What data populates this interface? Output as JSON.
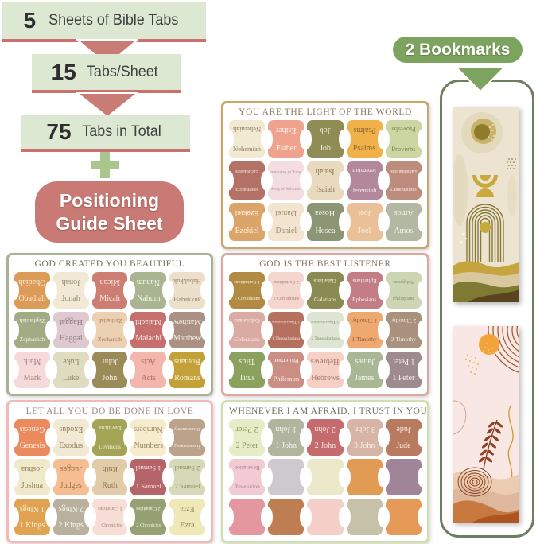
{
  "funnel": {
    "steps": [
      {
        "number": "5",
        "label": "Sheets of Bible Tabs"
      },
      {
        "number": "15",
        "label": "Tabs/Sheet"
      },
      {
        "number": "75",
        "label": "Tabs in Total"
      }
    ],
    "guide_line1": "Positioning",
    "guide_line2": "Guide Sheet"
  },
  "bookmarks_badge": "2 Bookmarks",
  "colors": {
    "badge_bg": "#dce8d2",
    "badge_underline": "#c8716e",
    "arrow_pink": "#c97b75",
    "plus_green": "#a9c78d",
    "guide_bg": "#c97a74",
    "bookmark_badge_bg": "#7da45f",
    "panel_border": "#6f7e5e"
  },
  "sheets": [
    {
      "title": "YOU ARE THE LIGHT OF THE WORLD",
      "border": "#c9a76c",
      "title_color": "#8a7a5e",
      "tabs": [
        {
          "label": "Nehemiah",
          "bg": "#f1e9d2",
          "fg": "#8d7c5e"
        },
        {
          "label": "Esther",
          "bg": "#efa28e",
          "fg": "#fdf3ec"
        },
        {
          "label": "Job",
          "bg": "#8f8c55",
          "fg": "#f3efdd"
        },
        {
          "label": "Psalms",
          "bg": "#f0b04a",
          "fg": "#8a6430"
        },
        {
          "label": "Proverbs",
          "bg": "#cbd6a2",
          "fg": "#7e8255"
        },
        {
          "label": "Ecclesiastes",
          "bg": "#b47165",
          "fg": "#f7e9e3"
        },
        {
          "label": "Song of Solomon",
          "bg": "#f3dde0",
          "fg": "#b08f96"
        },
        {
          "label": "Isaiah",
          "bg": "#e9dabd",
          "fg": "#8a7a58"
        },
        {
          "label": "Jeremiah",
          "bg": "#b2889a",
          "fg": "#f4eaf0"
        },
        {
          "label": "Lamentations",
          "bg": "#bd8c7c",
          "fg": "#f7ebe4"
        },
        {
          "label": "Ezekiel",
          "bg": "#dba56a",
          "fg": "#faf0e2"
        },
        {
          "label": "Daniel",
          "bg": "#f3e4d0",
          "fg": "#a28e6e"
        },
        {
          "label": "Hosea",
          "bg": "#8c9674",
          "fg": "#f3f3e5"
        },
        {
          "label": "Joel",
          "bg": "#e9c098",
          "fg": "#faf0e0"
        },
        {
          "label": "Amos",
          "bg": "#b3b8a2",
          "fg": "#f3f3eb"
        }
      ]
    },
    {
      "title": "GOD CREATED YOU BEAUTIFUL",
      "border": "#a9b293",
      "title_color": "#6e7258",
      "tabs": [
        {
          "label": "Obadiah",
          "bg": "#dc9c57",
          "fg": "#faefdc"
        },
        {
          "label": "Jonah",
          "bg": "#f1e9d5",
          "fg": "#968667"
        },
        {
          "label": "Micah",
          "bg": "#cb7e71",
          "fg": "#f9e9e3"
        },
        {
          "label": "Nahum",
          "bg": "#a9b491",
          "fg": "#f5f5e9"
        },
        {
          "label": "Habakkuk",
          "bg": "#ece0ca",
          "fg": "#94846a"
        },
        {
          "label": "Zephaniah",
          "bg": "#a3ab84",
          "fg": "#f3f5e7"
        },
        {
          "label": "Haggai",
          "bg": "#ddc9cf",
          "fg": "#8d7a85"
        },
        {
          "label": "Zechariah",
          "bg": "#ecd0b2",
          "fg": "#97795a"
        },
        {
          "label": "Malachi",
          "bg": "#c5706d",
          "fg": "#fbe9e5"
        },
        {
          "label": "Matthew",
          "bg": "#ab9183",
          "fg": "#f7ede3"
        },
        {
          "label": "Mark",
          "bg": "#f6dada",
          "fg": "#a98080"
        },
        {
          "label": "Luke",
          "bg": "#e0dcc1",
          "fg": "#8f8a62"
        },
        {
          "label": "John",
          "bg": "#9b8b59",
          "fg": "#f4efde"
        },
        {
          "label": "Acts",
          "bg": "#f2b6ac",
          "fg": "#aa6a60"
        },
        {
          "label": "Romans",
          "bg": "#c2a238",
          "fg": "#f9f1d9"
        }
      ]
    },
    {
      "title": "GOD IS THE BEST LISTENER",
      "border": "#dfa7a2",
      "title_color": "#87756a",
      "tabs": [
        {
          "label": "1 Corinthians",
          "bg": "#b18a43",
          "fg": "#f7efd9"
        },
        {
          "label": "2 Corinthians",
          "bg": "#f4d6ce",
          "fg": "#a9837b"
        },
        {
          "label": "Galatians",
          "bg": "#8b8a53",
          "fg": "#f2efdc"
        },
        {
          "label": "Ephesians",
          "bg": "#c37e85",
          "fg": "#f9e9eb"
        },
        {
          "label": "Philippians",
          "bg": "#ccd5b4",
          "fg": "#848e66"
        },
        {
          "label": "Colossians",
          "bg": "#d9aba2",
          "fg": "#fdf2ec"
        },
        {
          "label": "1 Thessalonians",
          "bg": "#b5705f",
          "fg": "#f9e7df"
        },
        {
          "label": "2 Thessalonians",
          "bg": "#dfe5d3",
          "fg": "#7e8a6a"
        },
        {
          "label": "1 Timothy",
          "bg": "#efa970",
          "fg": "#8a5a34"
        },
        {
          "label": "2 Timothy",
          "bg": "#a8917d",
          "fg": "#f7ede1"
        },
        {
          "label": "Titus",
          "bg": "#8ba25f",
          "fg": "#f3f5e1"
        },
        {
          "label": "Philemon",
          "bg": "#ca8e85",
          "fg": "#fbebe7"
        },
        {
          "label": "Hebrews",
          "bg": "#f6d0c5",
          "fg": "#a87a6e"
        },
        {
          "label": "James",
          "bg": "#aab795",
          "fg": "#f5f7eb"
        },
        {
          "label": "1 Peter",
          "bg": "#9e8b90",
          "fg": "#f5edf1"
        }
      ]
    },
    {
      "title": "LET ALL YOU DO BE DONE IN LOVE",
      "border": "#f2b9ba",
      "title_color": "#9c8a80",
      "tabs": [
        {
          "label": "Genesis",
          "bg": "#eb8a5f",
          "fg": "#fdeede"
        },
        {
          "label": "Exodus",
          "bg": "#f2e9d5",
          "fg": "#93805f"
        },
        {
          "label": "Leviticus",
          "bg": "#a4a457",
          "fg": "#f6f3dc"
        },
        {
          "label": "Numbers",
          "bg": "#f6eccd",
          "fg": "#9a8a62"
        },
        {
          "label": "Deuteronomy",
          "bg": "#baa28b",
          "fg": "#f9f1e5"
        },
        {
          "label": "Joshua",
          "bg": "#f0e9cc",
          "fg": "#8f835c"
        },
        {
          "label": "Judges",
          "bg": "#f6bd92",
          "fg": "#9c7048"
        },
        {
          "label": "Ruth",
          "bg": "#e2cba8",
          "fg": "#8f7850"
        },
        {
          "label": "1 Samuel",
          "bg": "#b5646a",
          "fg": "#f9e5e3"
        },
        {
          "label": "2 Samuel",
          "bg": "#d6d9b8",
          "fg": "#8d9060"
        },
        {
          "label": "1 Kings",
          "bg": "#e0a352",
          "fg": "#fcf0da"
        },
        {
          "label": "2 Kings",
          "bg": "#b9b19d",
          "fg": "#f9f7ed"
        },
        {
          "label": "1 Chronicles",
          "bg": "#f7dfd7",
          "fg": "#a98275"
        },
        {
          "label": "2 Chronicles",
          "bg": "#95a173",
          "fg": "#f3f7e3"
        },
        {
          "label": "Ezra",
          "bg": "#efe9b8",
          "fg": "#8f8c55"
        }
      ]
    },
    {
      "title": "WHENEVER I AM AFRAID, I TRUST IN YOU",
      "border": "#cfe0ae",
      "title_color": "#6f735c",
      "tabs": [
        {
          "label": "2 Peter",
          "bg": "#e6edc6",
          "fg": "#8c9464"
        },
        {
          "label": "1 John",
          "bg": "#b1b59d",
          "fg": "#f6f6ec"
        },
        {
          "label": "2 John",
          "bg": "#c56b6e",
          "fg": "#f9e7e7"
        },
        {
          "label": "3 John",
          "bg": "#d6b4a6",
          "fg": "#f9f0e7"
        },
        {
          "label": "Jude",
          "bg": "#b97b5f",
          "fg": "#f9ede3"
        },
        {
          "label": "Revelation",
          "bg": "#f1cad3",
          "fg": "#a87e8c"
        },
        {
          "label": "",
          "bg": "#cdc9cf",
          "fg": "#888888"
        },
        {
          "label": "",
          "bg": "#ebe9c9",
          "fg": "#888888"
        },
        {
          "label": "",
          "bg": "#e29b55",
          "fg": "#888888"
        },
        {
          "label": "",
          "bg": "#a08599",
          "fg": "#888888"
        },
        {
          "label": "",
          "bg": "#e5979f",
          "fg": "#888888"
        },
        {
          "label": "",
          "bg": "#bf7e52",
          "fg": "#888888"
        },
        {
          "label": "",
          "bg": "#f4d0c8",
          "fg": "#888888"
        },
        {
          "label": "",
          "bg": "#c6c2a9",
          "fg": "#888888"
        },
        {
          "label": "",
          "bg": "#e59b57",
          "fg": "#888888"
        }
      ]
    }
  ]
}
